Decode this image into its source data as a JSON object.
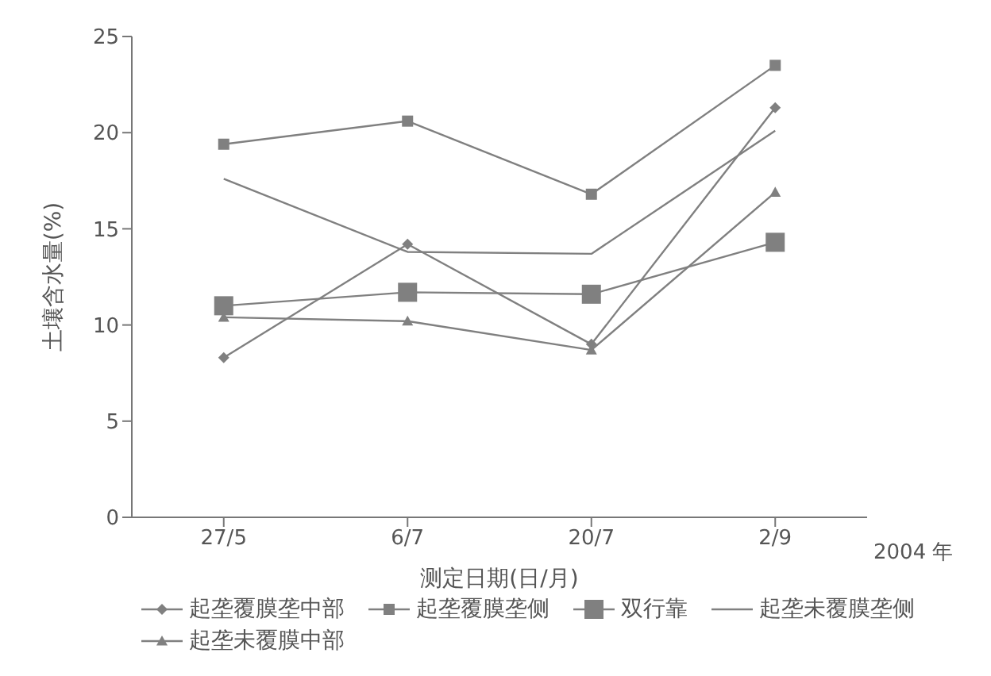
{
  "chart_data": {
    "type": "line",
    "xlabel": "测定日期(日/月)",
    "ylabel": "土壤含水量(%)",
    "categories": [
      "27/5",
      "6/7",
      "20/7",
      "2/9"
    ],
    "ylim": [
      0,
      25
    ],
    "yticks": [
      0,
      5,
      10,
      15,
      20,
      25
    ],
    "grid": false,
    "legend": "bottom",
    "annotations": [
      "2004 年"
    ],
    "series": [
      {
        "name": "起垄覆膜垄中部",
        "color": "#808080",
        "marker": "diamond",
        "values": [
          8.3,
          14.2,
          9.0,
          21.3
        ]
      },
      {
        "name": "起垄覆膜垄侧",
        "color": "#808080",
        "marker": "square",
        "values": [
          19.4,
          20.6,
          16.8,
          23.5
        ]
      },
      {
        "name": "双行靠",
        "color": "#808080",
        "marker": "square",
        "values": [
          11.0,
          11.7,
          11.6,
          14.3
        ]
      },
      {
        "name": "起垄未覆膜垄侧",
        "color": "#808080",
        "marker": "none",
        "values": [
          17.6,
          13.8,
          13.7,
          20.1
        ]
      },
      {
        "name": "起垄未覆膜中部",
        "color": "#808080",
        "marker": "triangle",
        "values": [
          10.4,
          10.2,
          8.7,
          16.9
        ]
      }
    ]
  }
}
